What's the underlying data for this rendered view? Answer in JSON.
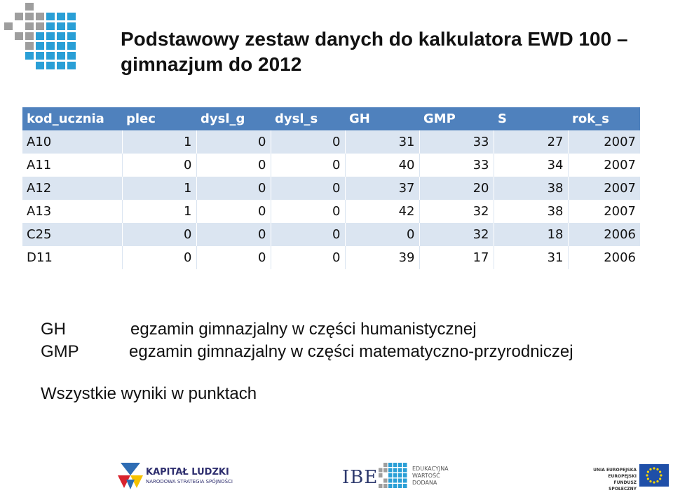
{
  "title": {
    "line1": "Podstawowy zestaw danych do kalkulatora EWD 100 –",
    "line2": "gimnazjum  do 2012"
  },
  "table": {
    "headers": [
      "kod_ucznia",
      "plec",
      "dysl_g",
      "dysl_s",
      "GH",
      "GMP",
      "S",
      "rok_s"
    ],
    "rows": [
      [
        "A10",
        "1",
        "0",
        "0",
        "31",
        "33",
        "27",
        "2007"
      ],
      [
        "A11",
        "0",
        "0",
        "0",
        "40",
        "33",
        "34",
        "2007"
      ],
      [
        "A12",
        "1",
        "0",
        "0",
        "37",
        "20",
        "38",
        "2007"
      ],
      [
        "A13",
        "1",
        "0",
        "0",
        "42",
        "32",
        "38",
        "2007"
      ],
      [
        "C25",
        "0",
        "0",
        "0",
        "0",
        "32",
        "18",
        "2006"
      ],
      [
        "D11",
        "0",
        "0",
        "0",
        "39",
        "17",
        "31",
        "2006"
      ]
    ]
  },
  "legend": [
    {
      "abbr": "GH",
      "desc": "egzamin gimnazjalny w części humanistycznej"
    },
    {
      "abbr": "GMP",
      "desc": "egzamin gimnazjalny w części matematyczno-przyrodniczej"
    }
  ],
  "note": "Wszystkie wyniki w punktach",
  "footer": {
    "kl_title": "KAPITAŁ LUDZKI",
    "kl_sub": "NARODOWA STRATEGIA SPÓJNOŚCI",
    "ibe": "IBE",
    "ibe_sub": [
      "EDUKACYJNA",
      "WARTOŚĆ",
      "DODANA"
    ],
    "ue": [
      "UNIA EUROPEJSKA",
      "EUROPEJSKI",
      "FUNDUSZ SPOŁECZNY"
    ]
  },
  "colors": {
    "header_bg": "#4f81bd",
    "band_bg": "#dbe5f1",
    "logo_blue": "#2a9fd6",
    "logo_grey": "#9e9e9e",
    "eu_blue": "#1f4fa8",
    "eu_star": "#ffd800"
  }
}
